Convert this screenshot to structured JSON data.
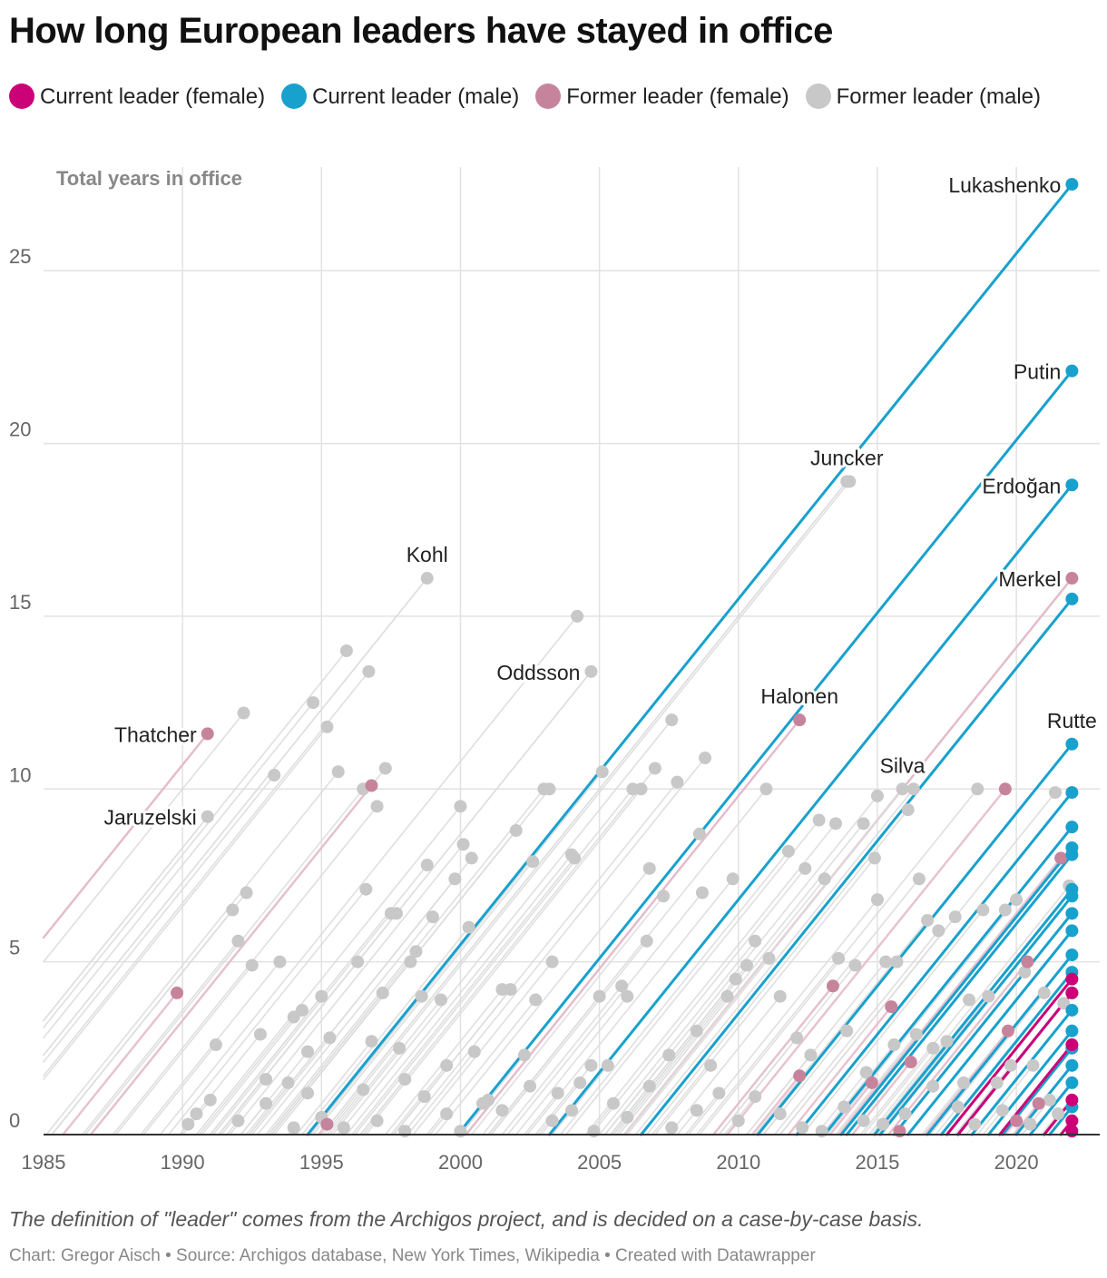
{
  "title": "How long European leaders have stayed in office",
  "legend": [
    {
      "label": "Current leader (female)",
      "color": "#cc0077"
    },
    {
      "label": "Current leader (male)",
      "color": "#18a1cd"
    },
    {
      "label": "Former leader (female)",
      "color": "#c6849c"
    },
    {
      "label": "Former leader (male)",
      "color": "#c8c8c8"
    }
  ],
  "footnote": "The definition of \"leader\" comes from the Archigos project, and is decided on a case-by-case basis.",
  "credit": "Chart: Gregor Aisch • Source: Archigos database, New York Times, Wikipedia • Created with Datawrapper",
  "chart_data": {
    "type": "scatter",
    "title": "How long European leaders have stayed in office",
    "ylabel": "Total years in office",
    "xlabel": "",
    "xlim": [
      1985,
      2023
    ],
    "ylim": [
      0,
      28
    ],
    "xticks": [
      "1985",
      "1990",
      "1995",
      "2000",
      "2005",
      "2010",
      "2015",
      "2020"
    ],
    "yticks": [
      "0",
      "5",
      "10",
      "15",
      "20",
      "25"
    ],
    "colors": {
      "current_female": "#cc0077",
      "current_male": "#18a1cd",
      "former_female": "#c6849c",
      "former_male": "#c8c8c8"
    },
    "named_leaders": [
      {
        "name": "Lukashenko",
        "end": 2022.0,
        "years": 27.5,
        "status": "current_male"
      },
      {
        "name": "Putin",
        "end": 2022.0,
        "years": 22.1,
        "status": "current_male"
      },
      {
        "name": "Erdoğan",
        "end": 2022.0,
        "years": 18.8,
        "status": "current_male"
      },
      {
        "name": "Merkel",
        "end": 2022.0,
        "years": 16.1,
        "status": "former_female"
      },
      {
        "name": "Rutte",
        "end": 2022.0,
        "years": 11.3,
        "status": "current_male"
      },
      {
        "name": "Juncker",
        "end": 2013.9,
        "years": 18.9,
        "status": "former_male"
      },
      {
        "name": "Kohl",
        "end": 1998.8,
        "years": 16.1,
        "status": "former_male"
      },
      {
        "name": "Oddsson",
        "end": 2004.7,
        "years": 13.4,
        "status": "former_male"
      },
      {
        "name": "Halonen",
        "end": 2012.2,
        "years": 12.0,
        "status": "former_female"
      },
      {
        "name": "Silva",
        "end": 2015.9,
        "years": 10.0,
        "status": "former_male"
      },
      {
        "name": "Thatcher",
        "end": 1990.9,
        "years": 11.6,
        "status": "former_female"
      },
      {
        "name": "Jaruzelski",
        "end": 1990.9,
        "years": 9.2,
        "status": "former_male"
      }
    ],
    "current_male": [
      {
        "end": 2022.0,
        "years": 15.5
      },
      {
        "end": 2022.0,
        "years": 9.9
      },
      {
        "end": 2022.0,
        "years": 8.9
      },
      {
        "end": 2022.0,
        "years": 8.3
      },
      {
        "end": 2022.0,
        "years": 8.1
      },
      {
        "end": 2022.0,
        "years": 7.1
      },
      {
        "end": 2022.0,
        "years": 6.9
      },
      {
        "end": 2022.0,
        "years": 6.4
      },
      {
        "end": 2022.0,
        "years": 5.9
      },
      {
        "end": 2022.0,
        "years": 5.2
      },
      {
        "end": 2022.0,
        "years": 4.7
      },
      {
        "end": 2022.0,
        "years": 4.1
      },
      {
        "end": 2022.0,
        "years": 3.6
      },
      {
        "end": 2022.0,
        "years": 3.0
      },
      {
        "end": 2022.0,
        "years": 2.5
      },
      {
        "end": 2022.0,
        "years": 2.0
      },
      {
        "end": 2022.0,
        "years": 1.5
      },
      {
        "end": 2022.0,
        "years": 0.8
      }
    ],
    "current_female": [
      {
        "end": 2022.0,
        "years": 4.5
      },
      {
        "end": 2022.0,
        "years": 4.1
      },
      {
        "end": 2022.0,
        "years": 2.6
      },
      {
        "end": 2022.0,
        "years": 1.0
      },
      {
        "end": 2022.0,
        "years": 0.4
      },
      {
        "end": 2022.0,
        "years": 0.1
      }
    ],
    "former_female": [
      {
        "end": 1989.8,
        "years": 4.1
      },
      {
        "end": 1996.8,
        "years": 10.1
      },
      {
        "end": 1995.2,
        "years": 0.3
      },
      {
        "end": 2012.2,
        "years": 1.7
      },
      {
        "end": 2013.4,
        "years": 4.3
      },
      {
        "end": 2014.8,
        "years": 1.5
      },
      {
        "end": 2015.5,
        "years": 3.7
      },
      {
        "end": 2015.8,
        "years": 0.1
      },
      {
        "end": 2016.2,
        "years": 2.1
      },
      {
        "end": 2019.6,
        "years": 10.0
      },
      {
        "end": 2019.7,
        "years": 3.0
      },
      {
        "end": 2020.0,
        "years": 0.4
      },
      {
        "end": 2020.4,
        "years": 5.0
      },
      {
        "end": 2020.8,
        "years": 0.9
      },
      {
        "end": 2021.6,
        "years": 8.0
      }
    ],
    "former_male": [
      {
        "end": 1990.5,
        "years": 0.6
      },
      {
        "end": 1991.2,
        "years": 2.6
      },
      {
        "end": 1991.8,
        "years": 6.5
      },
      {
        "end": 1992.0,
        "years": 5.6
      },
      {
        "end": 1992.2,
        "years": 12.2
      },
      {
        "end": 1992.3,
        "years": 7.0
      },
      {
        "end": 1992.5,
        "years": 4.9
      },
      {
        "end": 1992.8,
        "years": 2.9
      },
      {
        "end": 1993.0,
        "years": 1.6
      },
      {
        "end": 1993.3,
        "years": 10.4
      },
      {
        "end": 1993.5,
        "years": 5.0
      },
      {
        "end": 1993.8,
        "years": 1.5
      },
      {
        "end": 1994.0,
        "years": 3.4
      },
      {
        "end": 1994.3,
        "years": 3.6
      },
      {
        "end": 1994.5,
        "years": 2.4
      },
      {
        "end": 1994.7,
        "years": 12.5
      },
      {
        "end": 1995.0,
        "years": 4.0
      },
      {
        "end": 1995.2,
        "years": 11.8
      },
      {
        "end": 1995.3,
        "years": 2.8
      },
      {
        "end": 1995.6,
        "years": 10.5
      },
      {
        "end": 1995.9,
        "years": 14.0
      },
      {
        "end": 1996.3,
        "years": 5.0
      },
      {
        "end": 1996.5,
        "years": 10.0
      },
      {
        "end": 1996.6,
        "years": 7.1
      },
      {
        "end": 1996.7,
        "years": 13.4
      },
      {
        "end": 1996.8,
        "years": 2.7
      },
      {
        "end": 1997.0,
        "years": 9.5
      },
      {
        "end": 1997.2,
        "years": 4.1
      },
      {
        "end": 1997.3,
        "years": 10.6
      },
      {
        "end": 1997.5,
        "years": 6.4
      },
      {
        "end": 1997.7,
        "years": 6.4
      },
      {
        "end": 1997.8,
        "years": 2.5
      },
      {
        "end": 1998.0,
        "years": 1.6
      },
      {
        "end": 1998.2,
        "years": 5.0
      },
      {
        "end": 1998.4,
        "years": 5.3
      },
      {
        "end": 1998.6,
        "years": 4.0
      },
      {
        "end": 1998.8,
        "years": 7.8
      },
      {
        "end": 1999.0,
        "years": 6.3
      },
      {
        "end": 1999.3,
        "years": 3.9
      },
      {
        "end": 1999.5,
        "years": 2.0
      },
      {
        "end": 1999.8,
        "years": 7.4
      },
      {
        "end": 2000.0,
        "years": 9.5
      },
      {
        "end": 2000.1,
        "years": 8.4
      },
      {
        "end": 2000.3,
        "years": 6.0
      },
      {
        "end": 2000.4,
        "years": 8.0
      },
      {
        "end": 2000.5,
        "years": 2.4
      },
      {
        "end": 2001.0,
        "years": 1.0
      },
      {
        "end": 2001.5,
        "years": 4.2
      },
      {
        "end": 2001.8,
        "years": 4.2
      },
      {
        "end": 2002.0,
        "years": 8.8
      },
      {
        "end": 2002.3,
        "years": 2.3
      },
      {
        "end": 2002.6,
        "years": 7.9
      },
      {
        "end": 2002.7,
        "years": 3.9
      },
      {
        "end": 2003.0,
        "years": 10.0
      },
      {
        "end": 2003.2,
        "years": 10.0
      },
      {
        "end": 2003.3,
        "years": 5.0
      },
      {
        "end": 2003.5,
        "years": 1.2
      },
      {
        "end": 2004.0,
        "years": 8.1
      },
      {
        "end": 2004.1,
        "years": 8.0
      },
      {
        "end": 2004.2,
        "years": 15.0
      },
      {
        "end": 2004.3,
        "years": 1.5
      },
      {
        "end": 2004.7,
        "years": 2.0
      },
      {
        "end": 2005.0,
        "years": 4.0
      },
      {
        "end": 2005.1,
        "years": 10.5
      },
      {
        "end": 2005.3,
        "years": 2.0
      },
      {
        "end": 2005.8,
        "years": 4.3
      },
      {
        "end": 2006.0,
        "years": 4.0
      },
      {
        "end": 2006.2,
        "years": 10.0
      },
      {
        "end": 2006.5,
        "years": 10.0
      },
      {
        "end": 2006.7,
        "years": 5.6
      },
      {
        "end": 2006.8,
        "years": 7.7
      },
      {
        "end": 2007.0,
        "years": 10.6
      },
      {
        "end": 2007.3,
        "years": 6.9
      },
      {
        "end": 2007.5,
        "years": 2.3
      },
      {
        "end": 2007.6,
        "years": 12.0
      },
      {
        "end": 2007.8,
        "years": 10.2
      },
      {
        "end": 2008.5,
        "years": 3.0
      },
      {
        "end": 2008.6,
        "years": 8.7
      },
      {
        "end": 2008.7,
        "years": 7.0
      },
      {
        "end": 2008.8,
        "years": 10.9
      },
      {
        "end": 2009.0,
        "years": 2.0
      },
      {
        "end": 2009.6,
        "years": 4.0
      },
      {
        "end": 2009.8,
        "years": 7.4
      },
      {
        "end": 2009.9,
        "years": 4.5
      },
      {
        "end": 2010.3,
        "years": 4.9
      },
      {
        "end": 2010.6,
        "years": 5.6
      },
      {
        "end": 2011.0,
        "years": 10.0
      },
      {
        "end": 2011.1,
        "years": 5.1
      },
      {
        "end": 2011.5,
        "years": 4.0
      },
      {
        "end": 2011.8,
        "years": 8.2
      },
      {
        "end": 2012.1,
        "years": 2.8
      },
      {
        "end": 2012.4,
        "years": 7.7
      },
      {
        "end": 2012.6,
        "years": 2.3
      },
      {
        "end": 2012.9,
        "years": 9.1
      },
      {
        "end": 2013.1,
        "years": 7.4
      },
      {
        "end": 2013.5,
        "years": 9.0
      },
      {
        "end": 2013.6,
        "years": 5.1
      },
      {
        "end": 2013.9,
        "years": 3.0
      },
      {
        "end": 2014.0,
        "years": 18.9
      },
      {
        "end": 2014.2,
        "years": 4.9
      },
      {
        "end": 2014.5,
        "years": 9.0
      },
      {
        "end": 2014.6,
        "years": 1.8
      },
      {
        "end": 2014.9,
        "years": 8.0
      },
      {
        "end": 2015.0,
        "years": 6.8
      },
      {
        "end": 2015.0,
        "years": 9.8
      },
      {
        "end": 2015.3,
        "years": 5.0
      },
      {
        "end": 2015.6,
        "years": 2.6
      },
      {
        "end": 2015.7,
        "years": 5.0
      },
      {
        "end": 2016.1,
        "years": 9.4
      },
      {
        "end": 2016.3,
        "years": 10.0
      },
      {
        "end": 2016.4,
        "years": 2.9
      },
      {
        "end": 2016.5,
        "years": 7.4
      },
      {
        "end": 2016.8,
        "years": 6.2
      },
      {
        "end": 2017.0,
        "years": 2.5
      },
      {
        "end": 2017.2,
        "years": 5.9
      },
      {
        "end": 2017.5,
        "years": 2.7
      },
      {
        "end": 2017.8,
        "years": 6.3
      },
      {
        "end": 2018.1,
        "years": 1.5
      },
      {
        "end": 2018.3,
        "years": 3.9
      },
      {
        "end": 2018.6,
        "years": 10.0
      },
      {
        "end": 2018.8,
        "years": 6.5
      },
      {
        "end": 2019.0,
        "years": 4.0
      },
      {
        "end": 2019.3,
        "years": 1.5
      },
      {
        "end": 2019.6,
        "years": 6.5
      },
      {
        "end": 2019.8,
        "years": 2.0
      },
      {
        "end": 2020.0,
        "years": 6.8
      },
      {
        "end": 2020.3,
        "years": 4.7
      },
      {
        "end": 2020.6,
        "years": 2.0
      },
      {
        "end": 2021.0,
        "years": 4.1
      },
      {
        "end": 2021.2,
        "years": 1.0
      },
      {
        "end": 2021.4,
        "years": 9.9
      },
      {
        "end": 2021.7,
        "years": 3.8
      },
      {
        "end": 2021.9,
        "years": 7.2
      },
      {
        "end": 1990.2,
        "years": 0.3
      },
      {
        "end": 1991.0,
        "years": 1.0
      },
      {
        "end": 1992.0,
        "years": 0.4
      },
      {
        "end": 1993.0,
        "years": 0.9
      },
      {
        "end": 1994.0,
        "years": 0.2
      },
      {
        "end": 1994.5,
        "years": 1.2
      },
      {
        "end": 1995.0,
        "years": 0.5
      },
      {
        "end": 1995.8,
        "years": 0.2
      },
      {
        "end": 1996.5,
        "years": 1.3
      },
      {
        "end": 1997.0,
        "years": 0.4
      },
      {
        "end": 1998.0,
        "years": 0.1
      },
      {
        "end": 1998.7,
        "years": 1.1
      },
      {
        "end": 1999.5,
        "years": 0.6
      },
      {
        "end": 2000.0,
        "years": 0.1
      },
      {
        "end": 2000.8,
        "years": 0.9
      },
      {
        "end": 2001.5,
        "years": 0.7
      },
      {
        "end": 2002.5,
        "years": 1.4
      },
      {
        "end": 2003.3,
        "years": 0.4
      },
      {
        "end": 2004.0,
        "years": 0.7
      },
      {
        "end": 2004.8,
        "years": 0.1
      },
      {
        "end": 2005.5,
        "years": 0.9
      },
      {
        "end": 2006.0,
        "years": 0.5
      },
      {
        "end": 2006.8,
        "years": 1.4
      },
      {
        "end": 2007.6,
        "years": 0.2
      },
      {
        "end": 2008.5,
        "years": 0.7
      },
      {
        "end": 2009.3,
        "years": 1.2
      },
      {
        "end": 2010.0,
        "years": 0.4
      },
      {
        "end": 2010.6,
        "years": 1.1
      },
      {
        "end": 2011.5,
        "years": 0.6
      },
      {
        "end": 2012.3,
        "years": 0.2
      },
      {
        "end": 2013.0,
        "years": 0.1
      },
      {
        "end": 2013.8,
        "years": 0.8
      },
      {
        "end": 2014.5,
        "years": 0.4
      },
      {
        "end": 2015.2,
        "years": 0.3
      },
      {
        "end": 2016.0,
        "years": 0.6
      },
      {
        "end": 2017.0,
        "years": 1.4
      },
      {
        "end": 2017.9,
        "years": 0.8
      },
      {
        "end": 2018.5,
        "years": 0.3
      },
      {
        "end": 2019.5,
        "years": 0.7
      },
      {
        "end": 2020.5,
        "years": 0.3
      },
      {
        "end": 2021.5,
        "years": 0.6
      }
    ]
  }
}
